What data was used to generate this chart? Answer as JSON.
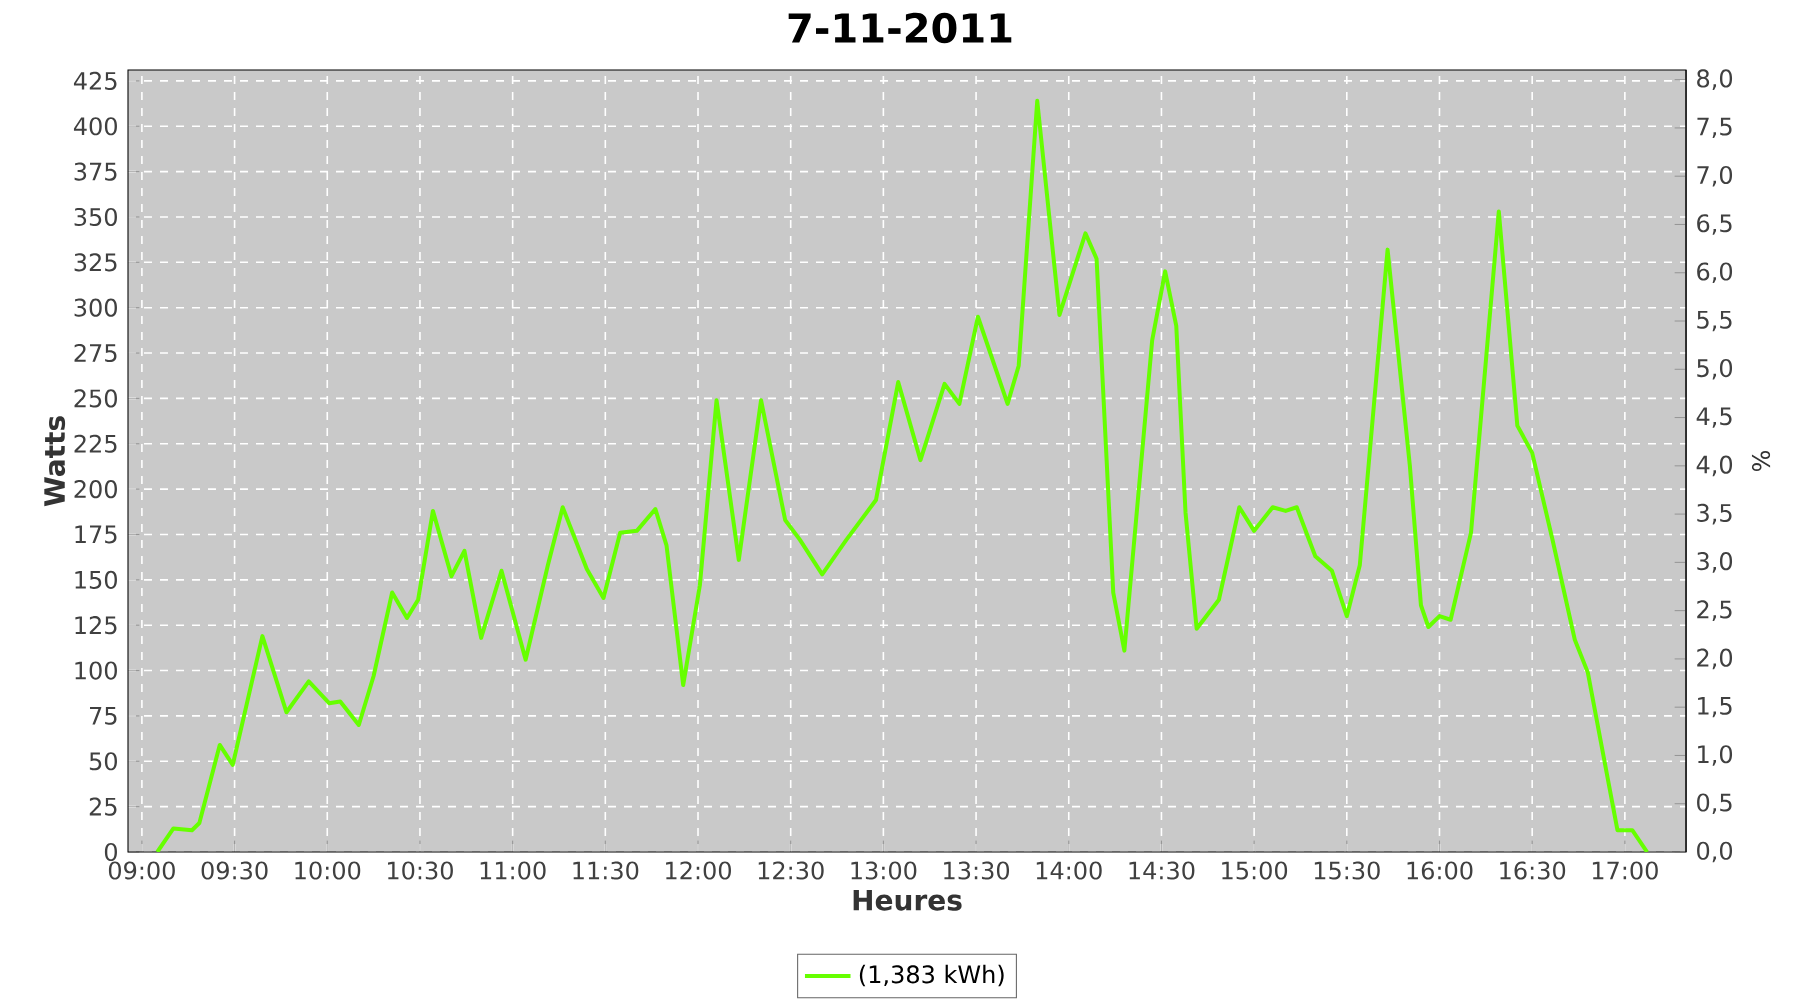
{
  "chart_data": {
    "type": "line",
    "title": "7-11-2011",
    "xlabel": "Heures",
    "ylabel": "Watts",
    "y2label": "%",
    "x": [
      9.083,
      9.17,
      9.27,
      9.31,
      9.42,
      9.49,
      9.65,
      9.78,
      9.9,
      10.01,
      10.07,
      10.17,
      10.25,
      10.35,
      10.43,
      10.49,
      10.57,
      10.67,
      10.74,
      10.83,
      10.94,
      11.07,
      11.19,
      11.27,
      11.4,
      11.49,
      11.58,
      11.67,
      11.77,
      11.83,
      11.92,
      12.01,
      12.1,
      12.22,
      12.34,
      12.47,
      12.55,
      12.67,
      12.8,
      12.96,
      13.08,
      13.2,
      13.33,
      13.41,
      13.51,
      13.67,
      13.73,
      13.83,
      13.95,
      14.09,
      14.15,
      14.24,
      14.3,
      14.45,
      14.52,
      14.58,
      14.63,
      14.69,
      14.81,
      14.92,
      15.0,
      15.1,
      15.17,
      15.23,
      15.33,
      15.42,
      15.5,
      15.57,
      15.72,
      15.84,
      15.9,
      15.94,
      16.0,
      16.06,
      16.17,
      16.32,
      16.42,
      16.5,
      16.61,
      16.73,
      16.8,
      16.96,
      17.04,
      17.12
    ],
    "series": [
      {
        "name": "(1,383 kWh)",
        "color": "#66ff00",
        "values": [
          0,
          13,
          12,
          16,
          59,
          48,
          119,
          77,
          94,
          82,
          83,
          70,
          97,
          143,
          129,
          139,
          188,
          152,
          166,
          118,
          155,
          106,
          158,
          190,
          156,
          140,
          176,
          177,
          189,
          169,
          92,
          147,
          249,
          161,
          249,
          183,
          172,
          153,
          172,
          194,
          259,
          216,
          258,
          247,
          295,
          247,
          268,
          414,
          296,
          341,
          327,
          143,
          111,
          282,
          320,
          290,
          187,
          123,
          139,
          190,
          177,
          190,
          188,
          190,
          163,
          155,
          130,
          158,
          332,
          213,
          136,
          124,
          130,
          128,
          176,
          353,
          235,
          220,
          172,
          117,
          99,
          12,
          12,
          0
        ]
      }
    ],
    "xlim": [
      8.925,
      17.33
    ],
    "xticks": [
      {
        "value": 9,
        "label": "09:00"
      },
      {
        "value": 9.5,
        "label": "09:30"
      },
      {
        "value": 10,
        "label": "10:00"
      },
      {
        "value": 10.5,
        "label": "10:30"
      },
      {
        "value": 11,
        "label": "11:00"
      },
      {
        "value": 11.5,
        "label": "11:30"
      },
      {
        "value": 12,
        "label": "12:00"
      },
      {
        "value": 12.5,
        "label": "12:30"
      },
      {
        "value": 13,
        "label": "13:00"
      },
      {
        "value": 13.5,
        "label": "13:30"
      },
      {
        "value": 14,
        "label": "14:00"
      },
      {
        "value": 14.5,
        "label": "14:30"
      },
      {
        "value": 15,
        "label": "15:00"
      },
      {
        "value": 15.5,
        "label": "15:30"
      },
      {
        "value": 16,
        "label": "16:00"
      },
      {
        "value": 16.5,
        "label": "16:30"
      },
      {
        "value": 17,
        "label": "17:00"
      }
    ],
    "ylim": [
      0,
      431
    ],
    "yticks": [
      0,
      25,
      50,
      75,
      100,
      125,
      150,
      175,
      200,
      225,
      250,
      275,
      300,
      325,
      350,
      375,
      400,
      425
    ],
    "y2lim": [
      0,
      8.1
    ],
    "y2ticks": [
      {
        "value": 0,
        "label": "0,0"
      },
      {
        "value": 0.5,
        "label": "0,5"
      },
      {
        "value": 1,
        "label": "1,0"
      },
      {
        "value": 1.5,
        "label": "1,5"
      },
      {
        "value": 2,
        "label": "2,0"
      },
      {
        "value": 2.5,
        "label": "2,5"
      },
      {
        "value": 3,
        "label": "3,0"
      },
      {
        "value": 3.5,
        "label": "3,5"
      },
      {
        "value": 4,
        "label": "4,0"
      },
      {
        "value": 4.5,
        "label": "4,5"
      },
      {
        "value": 5,
        "label": "5,0"
      },
      {
        "value": 5.5,
        "label": "5,5"
      },
      {
        "value": 6,
        "label": "6,0"
      },
      {
        "value": 6.5,
        "label": "6,5"
      },
      {
        "value": 7,
        "label": "7,0"
      },
      {
        "value": 7.5,
        "label": "7,5"
      },
      {
        "value": 8,
        "label": "8,0"
      }
    ],
    "grid": true,
    "legend": "bottom"
  }
}
